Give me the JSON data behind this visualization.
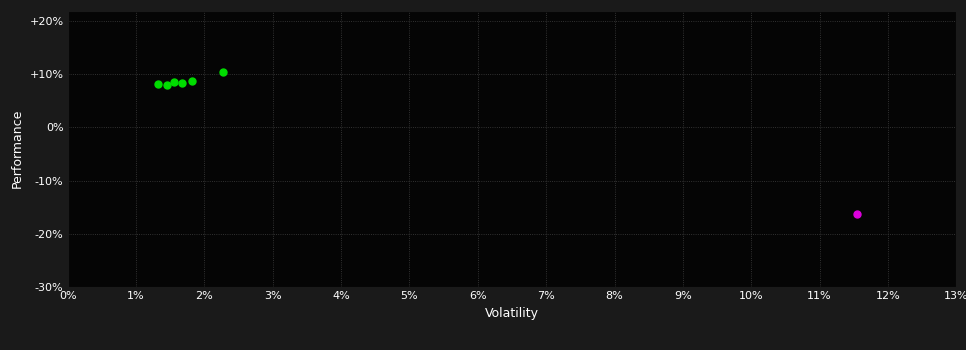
{
  "background_color": "#1a1a1a",
  "plot_bg_color": "#050505",
  "grid_color": "#404040",
  "grid_linestyle": ":",
  "xlabel": "Volatility",
  "ylabel": "Performance",
  "xlabel_color": "#ffffff",
  "ylabel_color": "#ffffff",
  "tick_color": "#ffffff",
  "tick_fontsize": 8,
  "label_fontsize": 9,
  "xlim": [
    0.0,
    0.13
  ],
  "ylim": [
    -0.3,
    0.22
  ],
  "xticks": [
    0.0,
    0.01,
    0.02,
    0.03,
    0.04,
    0.05,
    0.06,
    0.07,
    0.08,
    0.09,
    0.1,
    0.11,
    0.12,
    0.13
  ],
  "yticks": [
    -0.3,
    -0.2,
    -0.1,
    0.0,
    0.1,
    0.2
  ],
  "ytick_labels": [
    "-30%",
    "-20%",
    "-10%",
    "0%",
    "+10%",
    "+20%"
  ],
  "xtick_labels": [
    "0%",
    "1%",
    "2%",
    "3%",
    "4%",
    "5%",
    "6%",
    "7%",
    "8%",
    "9%",
    "10%",
    "11%",
    "12%",
    "13%"
  ],
  "green_points": [
    [
      0.0132,
      0.082
    ],
    [
      0.0145,
      0.079
    ],
    [
      0.0155,
      0.086
    ],
    [
      0.0168,
      0.084
    ],
    [
      0.0182,
      0.087
    ],
    [
      0.0228,
      0.104
    ]
  ],
  "magenta_points": [
    [
      0.1155,
      -0.163
    ]
  ],
  "point_size": 25,
  "green_color": "#00dd00",
  "magenta_color": "#dd00dd"
}
